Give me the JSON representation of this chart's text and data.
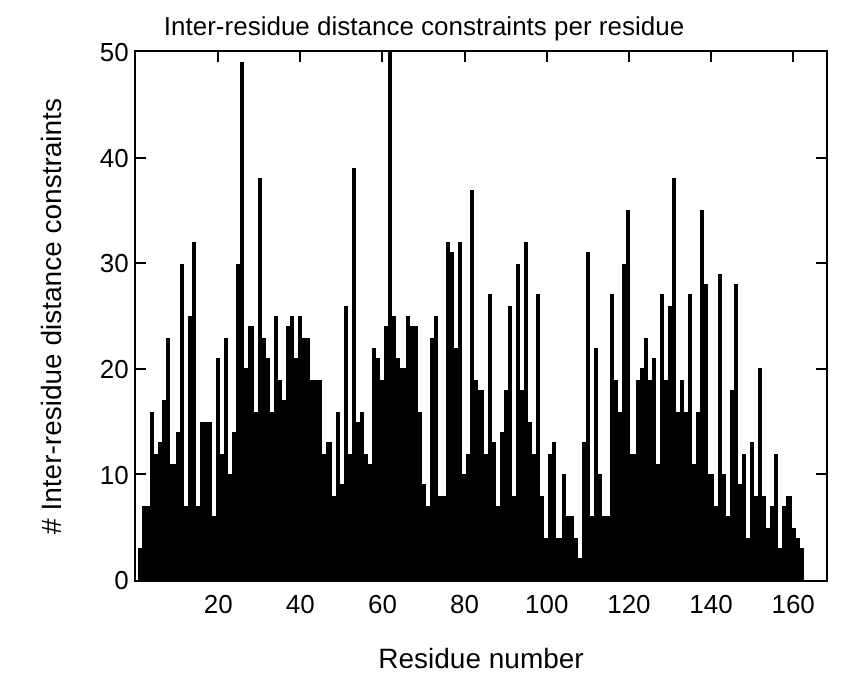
{
  "chart_data": {
    "type": "bar",
    "title": "Inter-residue distance constraints per residue",
    "xlabel": "Residue number",
    "ylabel": "# Inter-residue distance constraints",
    "x": [
      1,
      2,
      3,
      4,
      5,
      6,
      7,
      8,
      9,
      10,
      11,
      12,
      13,
      14,
      15,
      16,
      17,
      18,
      19,
      20,
      21,
      22,
      23,
      24,
      25,
      26,
      27,
      28,
      29,
      30,
      31,
      32,
      33,
      34,
      35,
      36,
      37,
      38,
      39,
      40,
      41,
      42,
      43,
      44,
      45,
      46,
      47,
      48,
      49,
      50,
      51,
      52,
      53,
      54,
      55,
      56,
      57,
      58,
      59,
      60,
      61,
      62,
      63,
      64,
      65,
      66,
      67,
      68,
      69,
      70,
      71,
      72,
      73,
      74,
      75,
      76,
      77,
      78,
      79,
      80,
      81,
      82,
      83,
      84,
      85,
      86,
      87,
      88,
      89,
      90,
      91,
      92,
      93,
      94,
      95,
      96,
      97,
      98,
      99,
      100,
      101,
      102,
      103,
      104,
      105,
      106,
      107,
      108,
      109,
      110,
      111,
      112,
      113,
      114,
      115,
      116,
      117,
      118,
      119,
      120,
      121,
      122,
      123,
      124,
      125,
      126,
      127,
      128,
      129,
      130,
      131,
      132,
      133,
      134,
      135,
      136,
      137,
      138,
      139,
      140,
      141,
      142,
      143,
      144,
      145,
      146,
      147,
      148,
      149,
      150,
      151,
      152,
      153,
      154,
      155,
      156,
      157,
      158,
      159,
      160,
      161,
      162
    ],
    "values": [
      3,
      7,
      7,
      16,
      12,
      13,
      17,
      23,
      11,
      14,
      30,
      7,
      25,
      32,
      7,
      15,
      15,
      15,
      6,
      21,
      12,
      23,
      10,
      14,
      30,
      49,
      20,
      24,
      16,
      38,
      23,
      21,
      16,
      25,
      19,
      17,
      24,
      25,
      21,
      25,
      23,
      23,
      19,
      19,
      19,
      12,
      13,
      8,
      16,
      9,
      26,
      12,
      39,
      15,
      16,
      12,
      11,
      22,
      21,
      19,
      24,
      50,
      25,
      21,
      20,
      25,
      24,
      24,
      16,
      9,
      7,
      23,
      25,
      8,
      8,
      32,
      31,
      22,
      32,
      10,
      12,
      37,
      19,
      18,
      12,
      27,
      13,
      7,
      14,
      18,
      26,
      8,
      30,
      18,
      32,
      15,
      12,
      27,
      8,
      4,
      12,
      13,
      4,
      10,
      6,
      6,
      4,
      2,
      13,
      31,
      6,
      22,
      10,
      6,
      6,
      27,
      19,
      16,
      30,
      35,
      12,
      19,
      20,
      23,
      19,
      21,
      11,
      27,
      19,
      26,
      38,
      16,
      19,
      16,
      27,
      11,
      16,
      35,
      28,
      10,
      7,
      29,
      10,
      6,
      18,
      28,
      9,
      12,
      4,
      13,
      8,
      20,
      8,
      5,
      7,
      12,
      3,
      7,
      8,
      5,
      4,
      3
    ],
    "color": "#000000",
    "xlim": [
      0,
      168
    ],
    "xticks": [
      20,
      40,
      60,
      80,
      100,
      120,
      140,
      160
    ],
    "ylim": [
      0,
      50
    ],
    "yticks": [
      0,
      10,
      20,
      30,
      40,
      50
    ]
  }
}
